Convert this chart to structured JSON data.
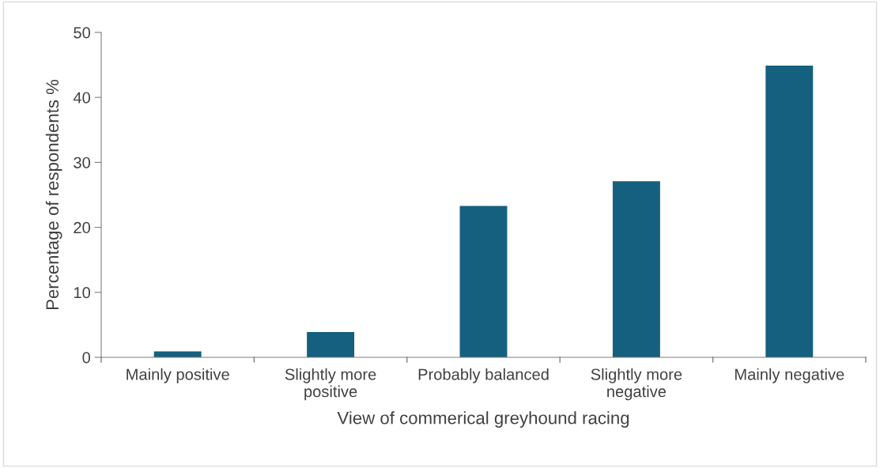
{
  "chart_data": {
    "type": "bar",
    "categories": [
      "Mainly positive",
      "Slightly more\npositive",
      "Probably balanced",
      "Slightly more\nnegative",
      "Mainly negative"
    ],
    "values": [
      0.9,
      3.9,
      23.3,
      27.1,
      44.9
    ],
    "color": "#16607f",
    "xlabel": "View of commerical greyhound racing",
    "ylabel": "Percentage of respondents %",
    "ylim": [
      0,
      50
    ],
    "yticks": [
      0,
      10,
      20,
      30,
      40,
      50
    ],
    "grid": false,
    "legend": false
  }
}
